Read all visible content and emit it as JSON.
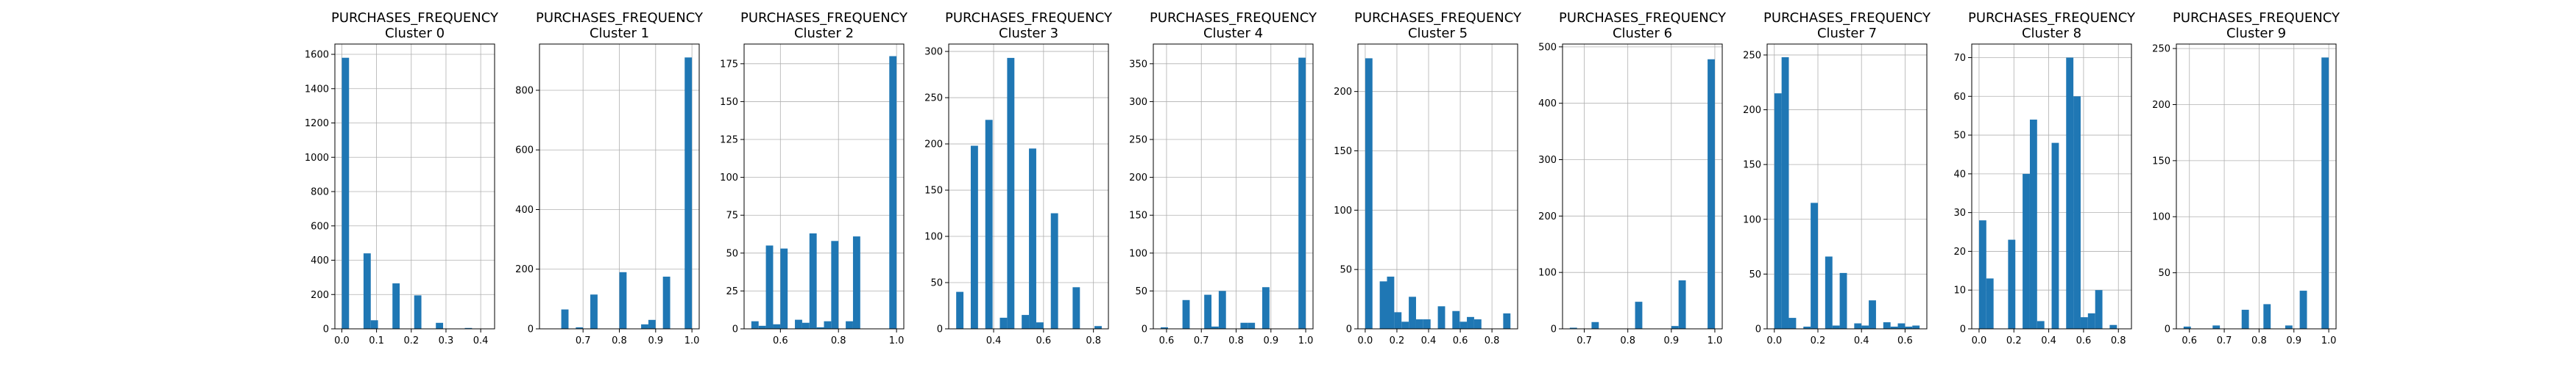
{
  "style": {
    "bar_color": "#1f77b4",
    "grid": true,
    "background": "#ffffff"
  },
  "chart_data": [
    {
      "type": "bar",
      "title_line1": "PURCHASES_FREQUENCY",
      "title_line2": "Cluster 0",
      "bar_range": [
        0.0,
        0.4167
      ],
      "bar_values": [
        1580,
        0,
        0,
        440,
        50,
        0,
        0,
        265,
        0,
        0,
        195,
        0,
        0,
        35,
        0,
        0,
        0,
        5,
        0,
        0
      ],
      "xlim": [
        -0.02,
        0.44
      ],
      "ylim": [
        0,
        1660
      ],
      "xticks": [
        0.0,
        0.1,
        0.2,
        0.3,
        0.4
      ],
      "xtick_labels": [
        "0.0",
        "0.1",
        "0.2",
        "0.3",
        "0.4"
      ],
      "yticks": [
        0,
        200,
        400,
        600,
        800,
        1000,
        1200,
        1400,
        1600
      ],
      "ytick_labels": [
        "0",
        "200",
        "400",
        "600",
        "800",
        "1000",
        "1200",
        "1400",
        "1600"
      ]
    },
    {
      "type": "bar",
      "title_line1": "PURCHASES_FREQUENCY",
      "title_line2": "Cluster 1",
      "bar_range": [
        0.6,
        1.0
      ],
      "bar_values": [
        0,
        0,
        65,
        0,
        5,
        0,
        115,
        0,
        0,
        0,
        190,
        0,
        0,
        15,
        30,
        0,
        175,
        0,
        0,
        910
      ],
      "xlim": [
        0.58,
        1.02
      ],
      "ylim": [
        0,
        955
      ],
      "xticks": [
        0.7,
        0.8,
        0.9,
        1.0
      ],
      "xtick_labels": [
        "0.7",
        "0.8",
        "0.9",
        "1.0"
      ],
      "yticks": [
        0,
        200,
        400,
        600,
        800
      ],
      "ytick_labels": [
        "0",
        "200",
        "400",
        "600",
        "800"
      ]
    },
    {
      "type": "bar",
      "title_line1": "PURCHASES_FREQUENCY",
      "title_line2": "Cluster 2",
      "bar_range": [
        0.5,
        1.0
      ],
      "bar_values": [
        5,
        2,
        55,
        3,
        53,
        0,
        6,
        4,
        63,
        1,
        5,
        58,
        0,
        5,
        61,
        0,
        0,
        0,
        0,
        180
      ],
      "xlim": [
        0.475,
        1.025
      ],
      "ylim": [
        0,
        188
      ],
      "xticks": [
        0.6,
        0.8,
        1.0
      ],
      "xtick_labels": [
        "0.6",
        "0.8",
        "1.0"
      ],
      "yticks": [
        0,
        25,
        50,
        75,
        100,
        125,
        150,
        175
      ],
      "ytick_labels": [
        "0",
        "25",
        "50",
        "75",
        "100",
        "125",
        "150",
        "175"
      ]
    },
    {
      "type": "bar",
      "title_line1": "PURCHASES_FREQUENCY",
      "title_line2": "Cluster 3",
      "bar_range": [
        0.25,
        0.8333
      ],
      "bar_values": [
        40,
        0,
        198,
        0,
        226,
        0,
        12,
        293,
        0,
        15,
        195,
        7,
        0,
        125,
        0,
        0,
        45,
        0,
        0,
        3
      ],
      "xlim": [
        0.22,
        0.86
      ],
      "ylim": [
        0,
        308
      ],
      "xticks": [
        0.4,
        0.6,
        0.8
      ],
      "xtick_labels": [
        "0.4",
        "0.6",
        "0.8"
      ],
      "yticks": [
        0,
        50,
        100,
        150,
        200,
        250,
        300
      ],
      "ytick_labels": [
        "0",
        "50",
        "100",
        "150",
        "200",
        "250",
        "300"
      ]
    },
    {
      "type": "bar",
      "title_line1": "PURCHASES_FREQUENCY",
      "title_line2": "Cluster 4",
      "bar_range": [
        0.5833,
        1.0
      ],
      "bar_values": [
        2,
        0,
        0,
        38,
        0,
        0,
        45,
        3,
        50,
        0,
        0,
        8,
        8,
        0,
        55,
        0,
        0,
        0,
        0,
        358
      ],
      "xlim": [
        0.562,
        1.021
      ],
      "ylim": [
        0,
        376
      ],
      "xticks": [
        0.6,
        0.7,
        0.8,
        0.9,
        1.0
      ],
      "xtick_labels": [
        "0.6",
        "0.7",
        "0.8",
        "0.9",
        "1.0"
      ],
      "yticks": [
        0,
        50,
        100,
        150,
        200,
        250,
        300,
        350
      ],
      "ytick_labels": [
        "0",
        "50",
        "100",
        "150",
        "200",
        "250",
        "300",
        "350"
      ]
    },
    {
      "type": "bar",
      "title_line1": "PURCHASES_FREQUENCY",
      "title_line2": "Cluster 5",
      "bar_range": [
        0.0,
        0.9167
      ],
      "bar_values": [
        228,
        0,
        40,
        44,
        14,
        6,
        27,
        8,
        8,
        0,
        19,
        0,
        15,
        6,
        10,
        8,
        0,
        0,
        0,
        13
      ],
      "xlim": [
        -0.046,
        0.962
      ],
      "ylim": [
        0,
        240
      ],
      "xticks": [
        0.0,
        0.2,
        0.4,
        0.6,
        0.8
      ],
      "xtick_labels": [
        "0.0",
        "0.2",
        "0.4",
        "0.6",
        "0.8"
      ],
      "yticks": [
        0,
        50,
        100,
        150,
        200
      ],
      "ytick_labels": [
        "0",
        "50",
        "100",
        "150",
        "200"
      ]
    },
    {
      "type": "bar",
      "title_line1": "PURCHASES_FREQUENCY",
      "title_line2": "Cluster 6",
      "bar_range": [
        0.6667,
        1.0
      ],
      "bar_values": [
        2,
        0,
        0,
        12,
        0,
        0,
        0,
        0,
        0,
        48,
        0,
        0,
        0,
        0,
        5,
        86,
        0,
        0,
        0,
        478
      ],
      "xlim": [
        0.65,
        1.017
      ],
      "ylim": [
        0,
        505
      ],
      "xticks": [
        0.7,
        0.8,
        0.9,
        1.0
      ],
      "xtick_labels": [
        "0.7",
        "0.8",
        "0.9",
        "1.0"
      ],
      "yticks": [
        0,
        100,
        200,
        300,
        400,
        500
      ],
      "ytick_labels": [
        "0",
        "100",
        "200",
        "300",
        "400",
        "500"
      ]
    },
    {
      "type": "bar",
      "title_line1": "PURCHASES_FREQUENCY",
      "title_line2": "Cluster 7",
      "bar_range": [
        0.0,
        0.6667
      ],
      "bar_values": [
        215,
        248,
        10,
        0,
        2,
        115,
        0,
        66,
        3,
        51,
        0,
        5,
        3,
        26,
        0,
        6,
        2,
        5,
        2,
        3
      ],
      "xlim": [
        -0.033,
        0.7
      ],
      "ylim": [
        0,
        260
      ],
      "xticks": [
        0.0,
        0.2,
        0.4,
        0.6
      ],
      "xtick_labels": [
        "0.0",
        "0.2",
        "0.4",
        "0.6"
      ],
      "yticks": [
        0,
        50,
        100,
        150,
        200,
        250
      ],
      "ytick_labels": [
        "0",
        "50",
        "100",
        "150",
        "200",
        "250"
      ]
    },
    {
      "type": "bar",
      "title_line1": "PURCHASES_FREQUENCY",
      "title_line2": "Cluster 8",
      "bar_range": [
        0.0,
        0.8333
      ],
      "bar_values": [
        28,
        13,
        0,
        0,
        23,
        0,
        40,
        54,
        2,
        0,
        48,
        0,
        70,
        60,
        3,
        4,
        10,
        0,
        1,
        0
      ],
      "xlim": [
        -0.042,
        0.875
      ],
      "ylim": [
        0,
        73.5
      ],
      "xticks": [
        0.0,
        0.2,
        0.4,
        0.6,
        0.8
      ],
      "xtick_labels": [
        "0.0",
        "0.2",
        "0.4",
        "0.6",
        "0.8"
      ],
      "yticks": [
        0,
        10,
        20,
        30,
        40,
        50,
        60,
        70
      ],
      "ytick_labels": [
        "0",
        "10",
        "20",
        "30",
        "40",
        "50",
        "60",
        "70"
      ]
    },
    {
      "type": "bar",
      "title_line1": "PURCHASES_FREQUENCY",
      "title_line2": "Cluster 9",
      "bar_range": [
        0.5833,
        1.0
      ],
      "bar_values": [
        2,
        0,
        0,
        0,
        3,
        0,
        0,
        0,
        17,
        0,
        0,
        22,
        0,
        0,
        3,
        0,
        34,
        0,
        0,
        242
      ],
      "xlim": [
        0.5625,
        1.021
      ],
      "ylim": [
        0,
        254
      ],
      "xticks": [
        0.6,
        0.7,
        0.8,
        0.9,
        1.0
      ],
      "xtick_labels": [
        "0.6",
        "0.7",
        "0.8",
        "0.9",
        "1.0"
      ],
      "yticks": [
        0,
        50,
        100,
        150,
        200,
        250
      ],
      "ytick_labels": [
        "0",
        "50",
        "100",
        "150",
        "200",
        "250"
      ]
    }
  ]
}
